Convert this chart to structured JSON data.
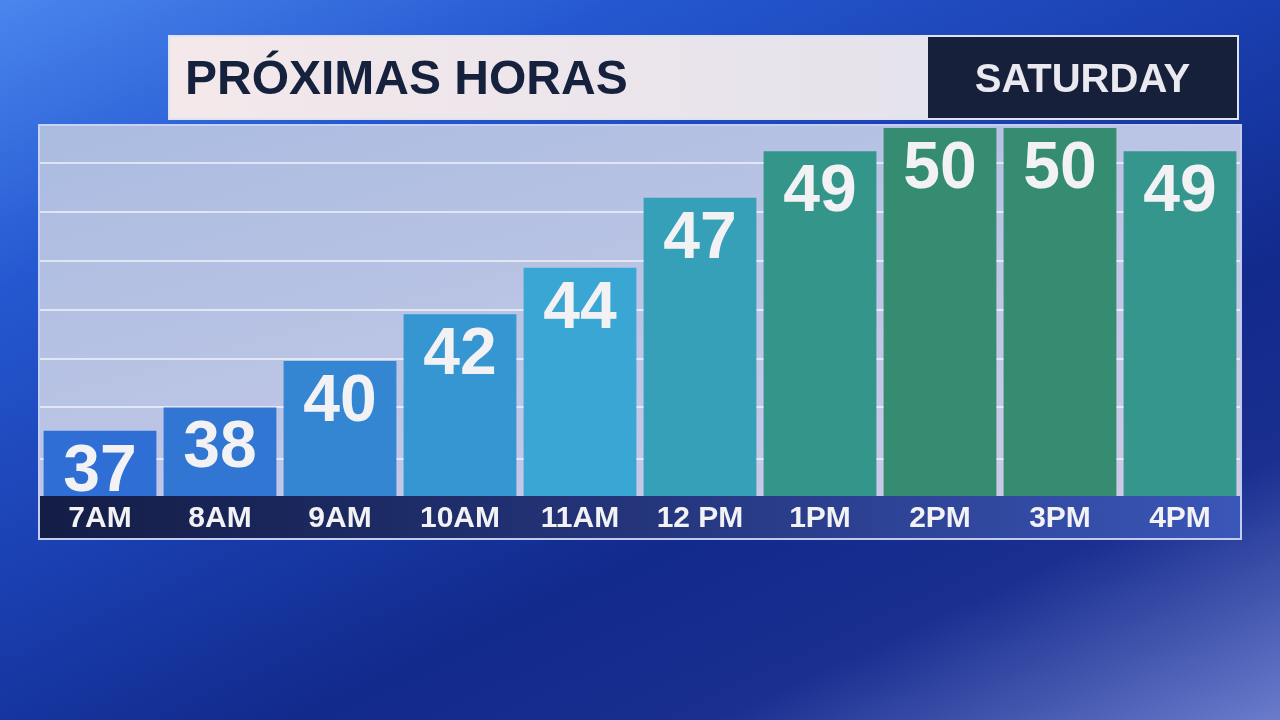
{
  "chart_data": {
    "type": "bar",
    "title": "PRÓXIMAS HORAS",
    "subtitle": "SATURDAY",
    "categories": [
      "7AM",
      "8AM",
      "9AM",
      "10AM",
      "11AM",
      "12 PM",
      "1PM",
      "2PM",
      "3PM",
      "4PM"
    ],
    "values": [
      37,
      38,
      40,
      42,
      44,
      47,
      49,
      50,
      50,
      49
    ],
    "colors": [
      "#2f6fd5",
      "#3276d3",
      "#3486d3",
      "#3596d1",
      "#3aa6d4",
      "#35a0b7",
      "#34968b",
      "#358c70",
      "#358c70",
      "#34968c"
    ],
    "ylim": [
      34.2,
      50
    ],
    "yticks": [
      {
        "value": 35.8,
        "label": null
      },
      {
        "value": 38.0,
        "label": null
      },
      {
        "value": 40.1,
        "label": null
      },
      {
        "value": 42.2,
        "label": null
      },
      {
        "value": 44.3,
        "label": null
      },
      {
        "value": 46.4,
        "label": null
      },
      {
        "value": 48.5,
        "label": null
      }
    ],
    "grid": "y",
    "tick_labels": "x",
    "data_labels": true
  }
}
